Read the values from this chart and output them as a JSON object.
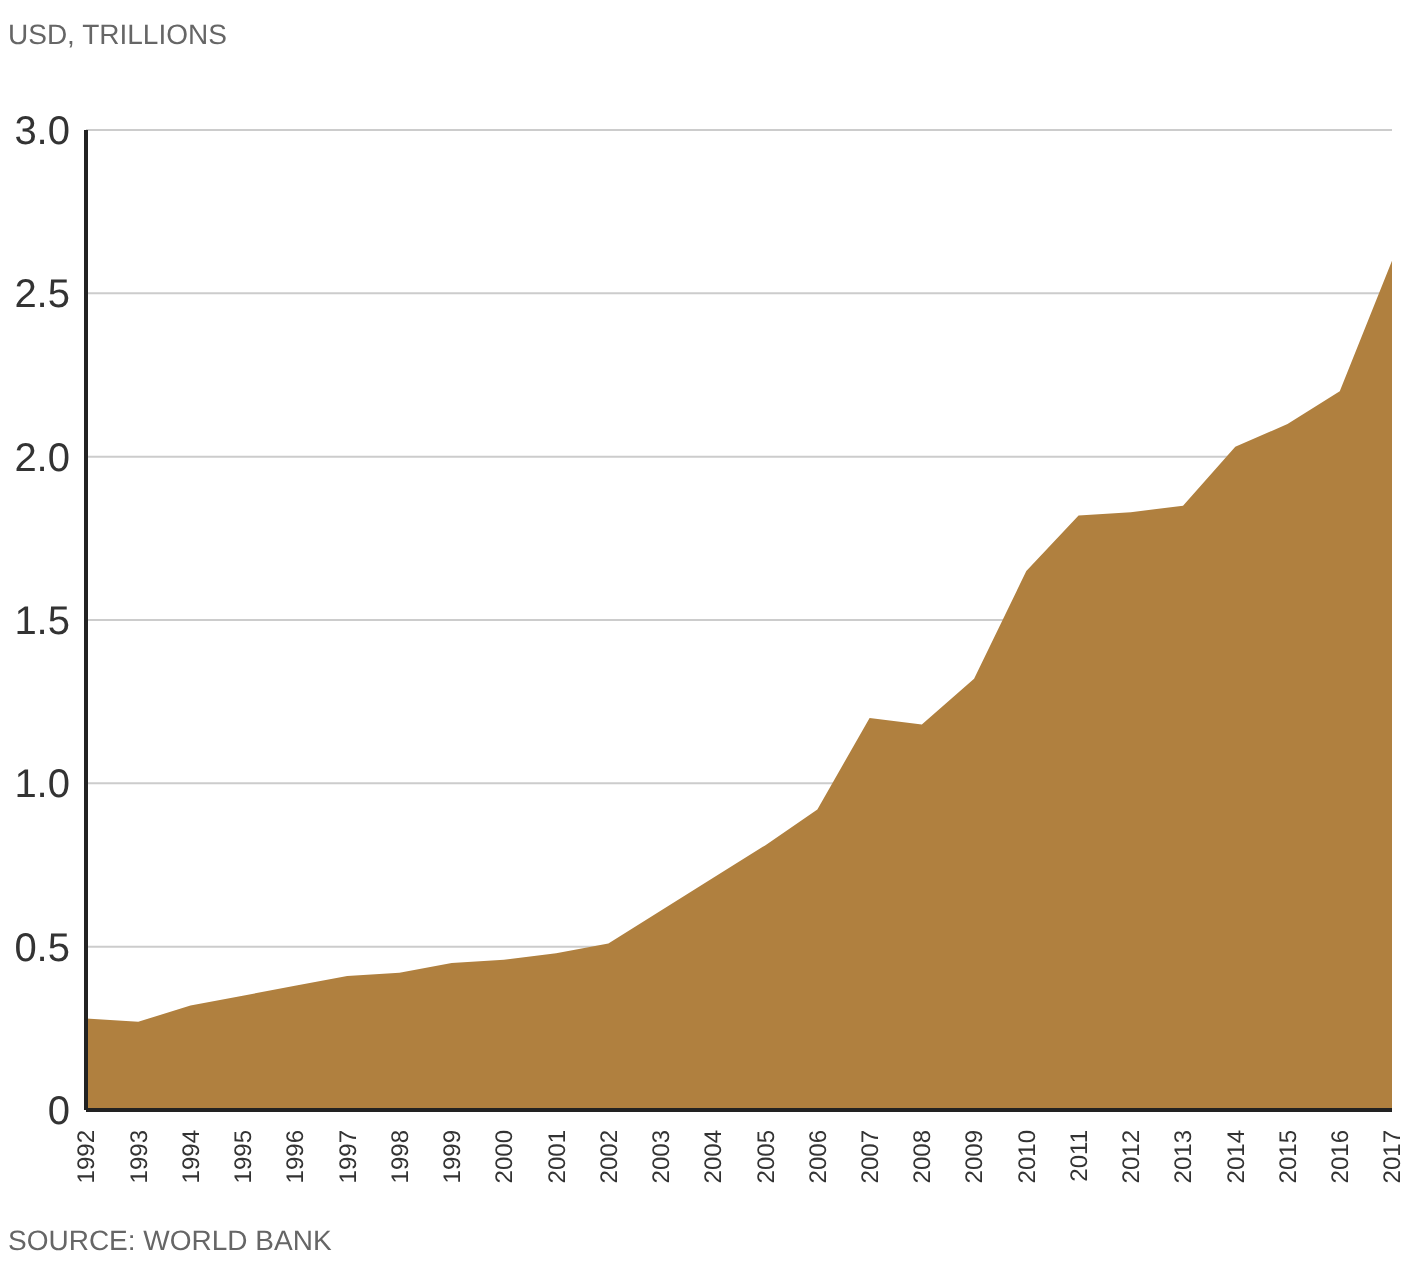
{
  "chart_data": {
    "type": "area",
    "ylabel": "USD, TRILLIONS",
    "categories": [
      "1992",
      "1993",
      "1994",
      "1995",
      "1996",
      "1997",
      "1998",
      "1999",
      "2000",
      "2001",
      "2002",
      "2003",
      "2004",
      "2005",
      "2006",
      "2007",
      "2008",
      "2009",
      "2010",
      "2011",
      "2012",
      "2013",
      "2014",
      "2015",
      "2016",
      "2017"
    ],
    "values": [
      0.28,
      0.27,
      0.32,
      0.35,
      0.38,
      0.41,
      0.42,
      0.45,
      0.46,
      0.48,
      0.51,
      0.61,
      0.71,
      0.81,
      0.92,
      1.2,
      1.18,
      1.32,
      1.65,
      1.82,
      1.83,
      1.85,
      2.03,
      2.1,
      2.2,
      2.6
    ],
    "color": "#b0803f",
    "ylim": [
      0,
      3
    ],
    "yticks": [
      {
        "value": 0,
        "label": "0"
      },
      0.5,
      {
        "value": 1,
        "label": "1.0"
      },
      1.5,
      {
        "value": 2,
        "label": "2.0"
      },
      2.5,
      {
        "value": 3,
        "label": "3.0"
      }
    ],
    "grid": "y",
    "annotations": [
      "SOURCE: WORLD BANK"
    ]
  }
}
